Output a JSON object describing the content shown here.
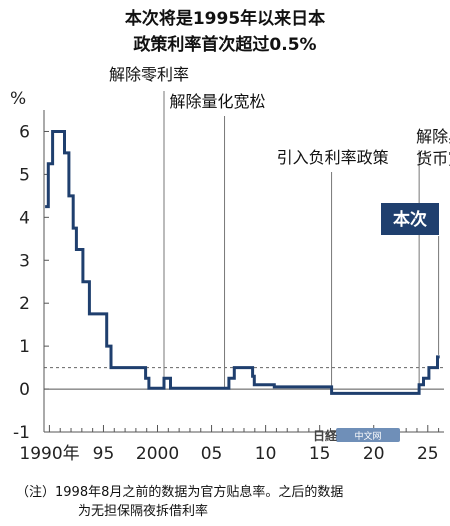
{
  "chart_data": {
    "type": "line",
    "title": [
      "本次将是1995年以来日本",
      "政策利率首次超过0.5%"
    ],
    "ylabel": "%",
    "xlabel": "",
    "ylim": [
      -1,
      6.5
    ],
    "yticks": [
      {
        "value": 6,
        "label": "6"
      },
      {
        "value": 5,
        "label": "5"
      },
      {
        "value": 4,
        "label": "4"
      },
      {
        "value": 3,
        "label": "3"
      },
      {
        "value": 2,
        "label": "2"
      },
      {
        "value": 1,
        "label": "1"
      },
      {
        "value": 0,
        "label": "0"
      },
      {
        "value": -1,
        "label": "-1"
      }
    ],
    "xlim": [
      1989.5,
      2026.5
    ],
    "xticks": [
      {
        "value": 1990,
        "label": "1990年"
      },
      {
        "value": 1995,
        "label": "95"
      },
      {
        "value": 2000,
        "label": "2000"
      },
      {
        "value": 2005,
        "label": "05"
      },
      {
        "value": 2010,
        "label": "10"
      },
      {
        "value": 2015,
        "label": "15"
      },
      {
        "value": 2020,
        "label": "20"
      },
      {
        "value": 2025,
        "label": "25"
      }
    ],
    "reference_line": {
      "value": 0.5,
      "style": "dashed"
    },
    "series": [
      {
        "points": [
          [
            1989.6,
            4.25
          ],
          [
            1989.9,
            4.25
          ],
          [
            1989.9,
            5.25
          ],
          [
            1990.3,
            5.25
          ],
          [
            1990.3,
            6.0
          ],
          [
            1991.4,
            6.0
          ],
          [
            1991.4,
            5.5
          ],
          [
            1991.8,
            5.5
          ],
          [
            1991.8,
            4.5
          ],
          [
            1992.2,
            4.5
          ],
          [
            1992.2,
            3.75
          ],
          [
            1992.5,
            3.75
          ],
          [
            1992.5,
            3.25
          ],
          [
            1993.1,
            3.25
          ],
          [
            1993.1,
            2.5
          ],
          [
            1993.7,
            2.5
          ],
          [
            1993.7,
            1.75
          ],
          [
            1995.3,
            1.75
          ],
          [
            1995.3,
            1.0
          ],
          [
            1995.7,
            1.0
          ],
          [
            1995.7,
            0.5
          ],
          [
            1998.9,
            0.5
          ],
          [
            1998.9,
            0.25
          ],
          [
            1999.2,
            0.25
          ],
          [
            1999.2,
            0.02
          ],
          [
            2000.6,
            0.02
          ],
          [
            2000.6,
            0.25
          ],
          [
            2001.2,
            0.25
          ],
          [
            2001.2,
            0.02
          ],
          [
            2006.6,
            0.02
          ],
          [
            2006.6,
            0.25
          ],
          [
            2007.1,
            0.25
          ],
          [
            2007.1,
            0.5
          ],
          [
            2008.8,
            0.5
          ],
          [
            2008.8,
            0.3
          ],
          [
            2008.95,
            0.3
          ],
          [
            2008.95,
            0.1
          ],
          [
            2010.8,
            0.1
          ],
          [
            2010.8,
            0.05
          ],
          [
            2016.1,
            0.05
          ],
          [
            2016.1,
            -0.1
          ],
          [
            2024.2,
            -0.1
          ],
          [
            2024.2,
            0.1
          ],
          [
            2024.6,
            0.1
          ],
          [
            2024.6,
            0.25
          ],
          [
            2025.1,
            0.25
          ],
          [
            2025.1,
            0.5
          ],
          [
            2025.9,
            0.5
          ],
          [
            2025.9,
            0.75
          ],
          [
            2026.1,
            0.75
          ]
        ]
      }
    ],
    "annotations": [
      {
        "x": 2000.6,
        "lines": [
          "解除零利率"
        ]
      },
      {
        "x": 2006.2,
        "lines": [
          "解除量化宽松"
        ]
      },
      {
        "x": 2016.1,
        "lines": [
          "引入负利率政策"
        ]
      },
      {
        "x": 2024.2,
        "lines": [
          "解除异次元",
          "货币宽松"
        ]
      }
    ],
    "callout": {
      "x": 2026.0,
      "label": "本次"
    },
    "note": [
      "（注）1998年8月之前的数据为官方贴息率。之后的数据",
      "为无担保隔夜拆借利率"
    ],
    "watermark": "中文网",
    "colors": {
      "line": "#1f3f6e",
      "axis": "#555555",
      "annotation_line": "#777777",
      "callout_bg": "#1f3f6e",
      "dashed": "#666666"
    }
  }
}
